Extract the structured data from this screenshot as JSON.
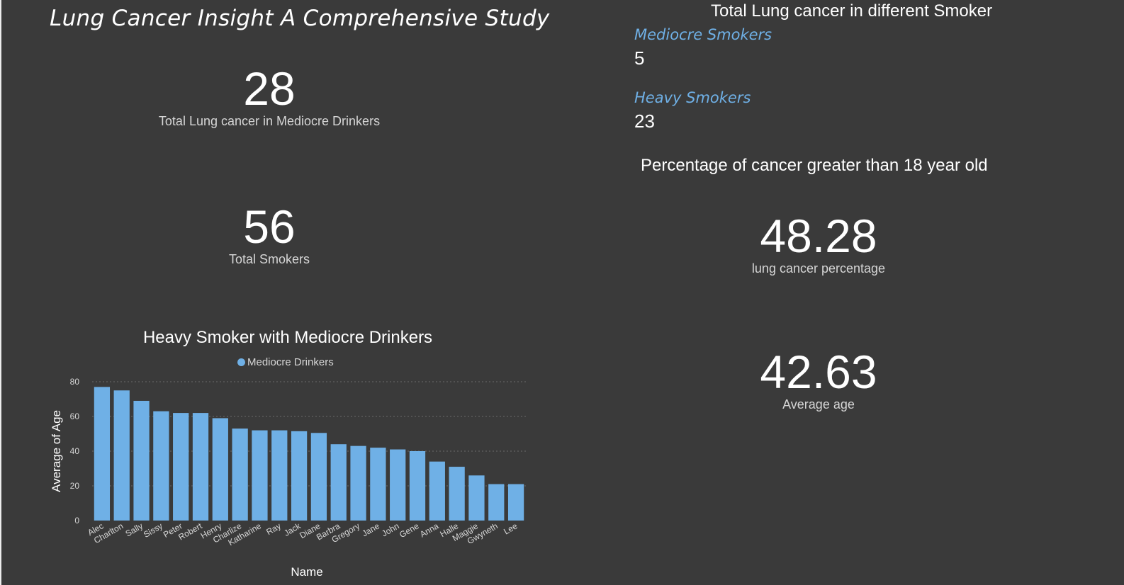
{
  "dashboard": {
    "title": "Lung Cancer Insight A Comprehensive Study"
  },
  "cards": {
    "mediocre_drinkers": {
      "value": "28",
      "label": "Total Lung cancer in Mediocre Drinkers"
    },
    "total_smokers": {
      "value": "56",
      "label": "Total Smokers"
    },
    "lung_cancer_percentage": {
      "value": "48.28",
      "label": "lung cancer percentage"
    },
    "average_age": {
      "value": "42.63",
      "label": "Average age"
    }
  },
  "smoker_panel": {
    "title": "Total Lung cancer in different Smoker",
    "rows": [
      {
        "category": "Mediocre Smokers",
        "value": "5"
      },
      {
        "category": "Heavy Smokers",
        "value": "23"
      }
    ]
  },
  "percentage_panel": {
    "title": "Percentage of cancer greater than 18 year old"
  },
  "chart_data": {
    "type": "bar",
    "title": "Heavy Smoker with Mediocre Drinkers",
    "xlabel": "Name",
    "ylabel": "Average of Age",
    "ylim": [
      0,
      80
    ],
    "yticks": [
      0,
      20,
      40,
      60,
      80
    ],
    "grid": true,
    "legend_position": "top-center",
    "color": "#6fb0e6",
    "categories": [
      "Alec",
      "Charlton",
      "Sally",
      "Sissy",
      "Peter",
      "Robert",
      "Henry",
      "Charlize",
      "Katharine",
      "Ray",
      "Jack",
      "Diane",
      "Barbra",
      "Gregory",
      "Jane",
      "John",
      "Gene",
      "Anna",
      "Halle",
      "Maggie",
      "Gwyneth",
      "Lee"
    ],
    "series": [
      {
        "name": "Mediocre Drinkers",
        "values": [
          77,
          75,
          69,
          63,
          62,
          62,
          59,
          53,
          52,
          52,
          51.5,
          50.5,
          44,
          43,
          42,
          41,
          40,
          34,
          31,
          26,
          21,
          21
        ]
      }
    ]
  }
}
